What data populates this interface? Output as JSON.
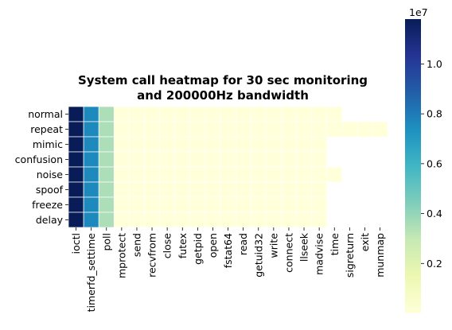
{
  "chart_data": {
    "type": "heatmap",
    "title_lines": [
      "System call heatmap for 30 sec monitoring",
      "and 200000Hz bandwidth"
    ],
    "rows": [
      "normal",
      "repeat",
      "mimic",
      "confusion",
      "noise",
      "spoof",
      "freeze",
      "delay"
    ],
    "columns": [
      "ioctl",
      "timerfd_settime",
      "poll",
      "mprotect",
      "send",
      "recvfrom",
      "close",
      "futex",
      "getpid",
      "open",
      "fstat64",
      "read",
      "getuid32",
      "write",
      "connect",
      "llseek",
      "madvise",
      "time",
      "sigreturn",
      "exit",
      "munmap"
    ],
    "values": [
      [
        11800000,
        7600000,
        3500000,
        5000,
        3000,
        2000,
        2000,
        2000,
        1000,
        1000,
        1000,
        1000,
        1000,
        1000,
        1000,
        1000,
        1000,
        500,
        null,
        null,
        null
      ],
      [
        11800000,
        7600000,
        3500000,
        5000,
        3000,
        2000,
        2000,
        2000,
        1000,
        1000,
        1000,
        1000,
        1000,
        1000,
        1000,
        1000,
        1000,
        500,
        300,
        200,
        100
      ],
      [
        11800000,
        7600000,
        3500000,
        5000,
        3000,
        2000,
        2000,
        2000,
        1000,
        1000,
        1000,
        1000,
        1000,
        1000,
        1000,
        1000,
        1000,
        null,
        null,
        null,
        null
      ],
      [
        11800000,
        7600000,
        3500000,
        5000,
        3000,
        2000,
        2000,
        2000,
        1000,
        1000,
        1000,
        1000,
        1000,
        1000,
        1000,
        1000,
        1000,
        null,
        null,
        null,
        null
      ],
      [
        11800000,
        7600000,
        3500000,
        5000,
        3000,
        2000,
        2000,
        2000,
        1000,
        1000,
        1000,
        1000,
        1000,
        1000,
        1000,
        1000,
        1000,
        500,
        null,
        null,
        null
      ],
      [
        11800000,
        7600000,
        3500000,
        5000,
        3000,
        2000,
        2000,
        2000,
        1000,
        1000,
        1000,
        1000,
        1000,
        1000,
        1000,
        1000,
        1000,
        null,
        null,
        null,
        null
      ],
      [
        11800000,
        7600000,
        3500000,
        5000,
        3000,
        2000,
        2000,
        2000,
        1000,
        1000,
        1000,
        1000,
        1000,
        1000,
        1000,
        1000,
        1000,
        null,
        null,
        null,
        null
      ],
      [
        11800000,
        7600000,
        3500000,
        5000,
        3000,
        2000,
        2000,
        2000,
        1000,
        1000,
        1000,
        1000,
        1000,
        1000,
        1000,
        1000,
        1000,
        null,
        null,
        null,
        null
      ]
    ],
    "colormap": "YlGnBu",
    "colorbar": {
      "range": [
        0,
        11800000
      ],
      "ticks": [
        0.2,
        0.4,
        0.6,
        0.8,
        1.0
      ],
      "tick_labels": [
        "0.2",
        "0.4",
        "0.6",
        "0.8",
        "1.0"
      ],
      "scale_label": "1e7"
    },
    "grid": false,
    "cell_border_color": "#ffffff"
  }
}
